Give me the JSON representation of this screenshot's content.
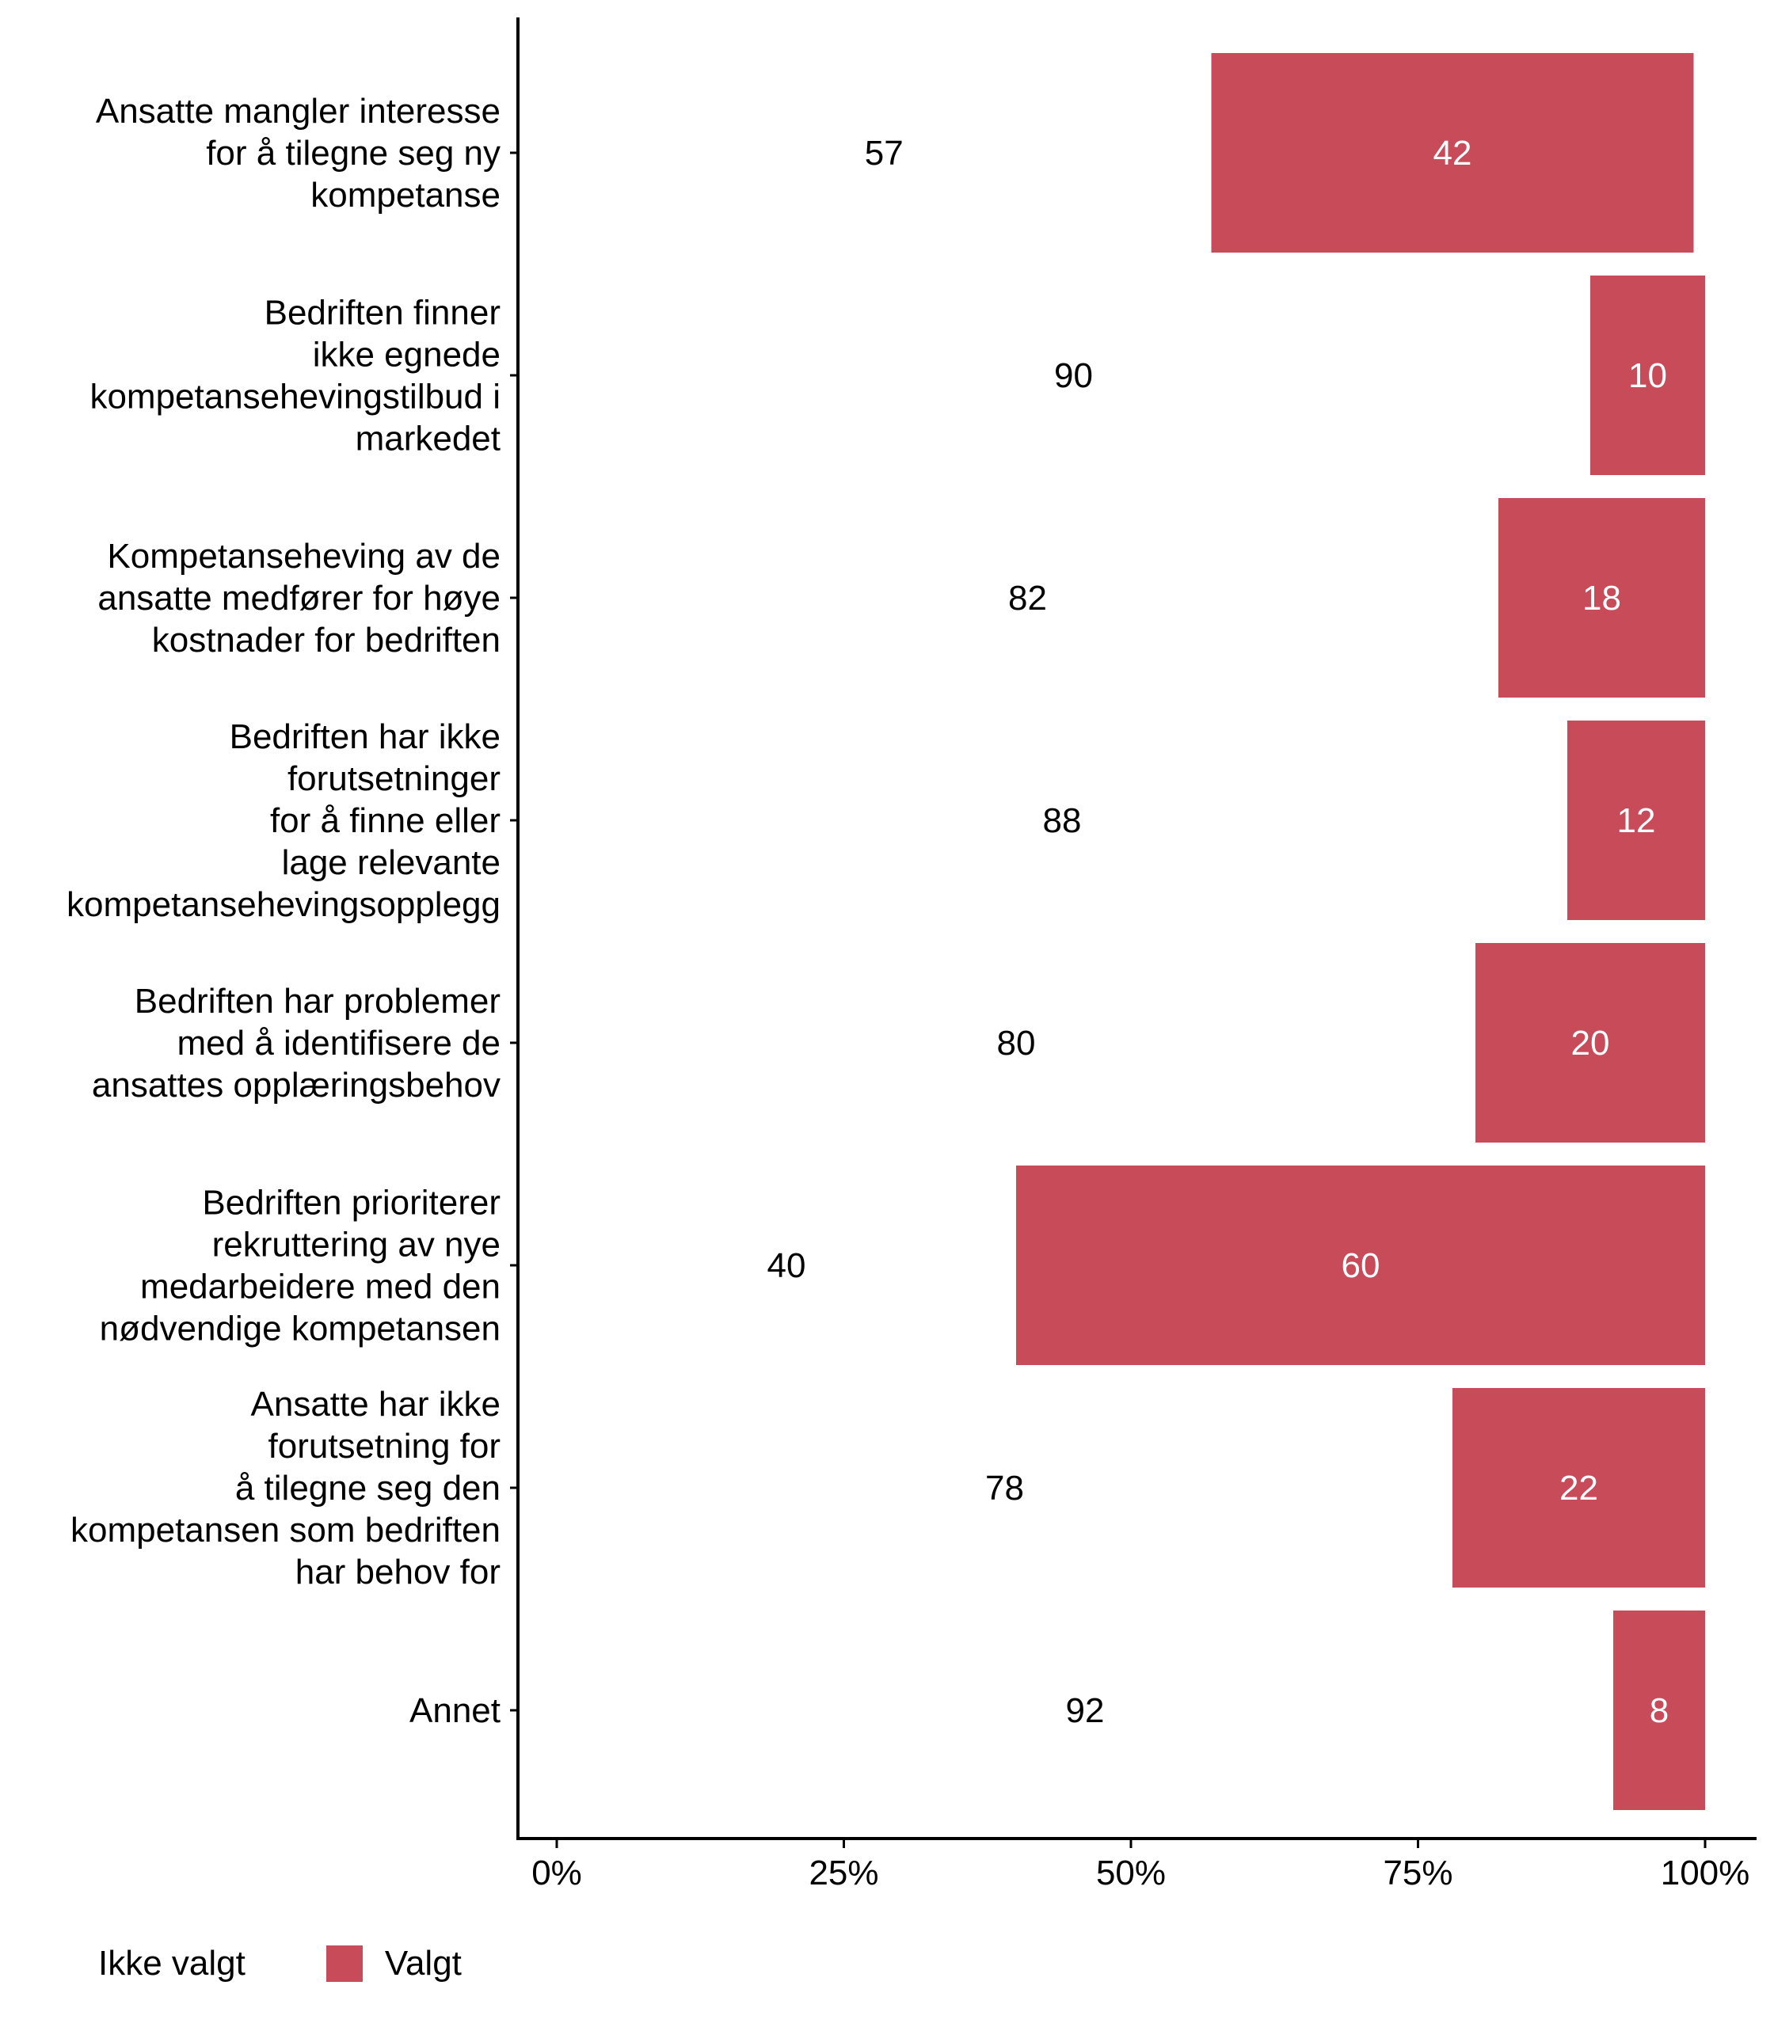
{
  "chart_data": {
    "type": "bar",
    "orientation": "horizontal",
    "stacked": "percent",
    "title": "",
    "xlabel": "",
    "ylabel": "",
    "xlim": [
      0,
      100
    ],
    "x_ticks": [
      "0%",
      "25%",
      "50%",
      "75%",
      "100%"
    ],
    "x_tick_values": [
      0,
      25,
      50,
      75,
      100
    ],
    "grid": false,
    "legend_position": "bottom-left",
    "categories": [
      [
        "Ansatte mangler interesse",
        "for å tilegne seg ny",
        "kompetanse"
      ],
      [
        "Bedriften finner",
        "ikke egnede",
        "kompetansehevingstilbud i",
        "markedet"
      ],
      [
        "Kompetanseheving av de",
        "ansatte medfører for høye",
        "kostnader for bedriften"
      ],
      [
        "Bedriften har ikke",
        "forutsetninger",
        "for å finne eller",
        "lage relevante",
        "kompetansehevingsopplegg"
      ],
      [
        "Bedriften har problemer",
        "med å identifisere de",
        "ansattes opplæringsbehov"
      ],
      [
        "Bedriften prioriterer",
        "rekruttering av nye",
        "medarbeidere med den",
        "nødvendige kompetansen"
      ],
      [
        "Ansatte har ikke",
        "forutsetning for",
        "å tilegne seg den",
        "kompetansen som bedriften",
        "har behov for"
      ],
      [
        "Annet"
      ]
    ],
    "series": [
      {
        "name": "Ikke valgt",
        "color": "#FFFFFF",
        "label_color": "#000000",
        "values": [
          57,
          90,
          82,
          88,
          80,
          40,
          78,
          92
        ]
      },
      {
        "name": "Valgt",
        "color": "#C84B5A",
        "label_color": "#FFFFFF",
        "values": [
          42,
          10,
          18,
          12,
          20,
          60,
          22,
          8
        ]
      }
    ]
  },
  "legend": {
    "items": [
      {
        "label": "Ikke valgt",
        "color": "#FFFFFF"
      },
      {
        "label": "Valgt",
        "color": "#C84B5A"
      }
    ]
  }
}
